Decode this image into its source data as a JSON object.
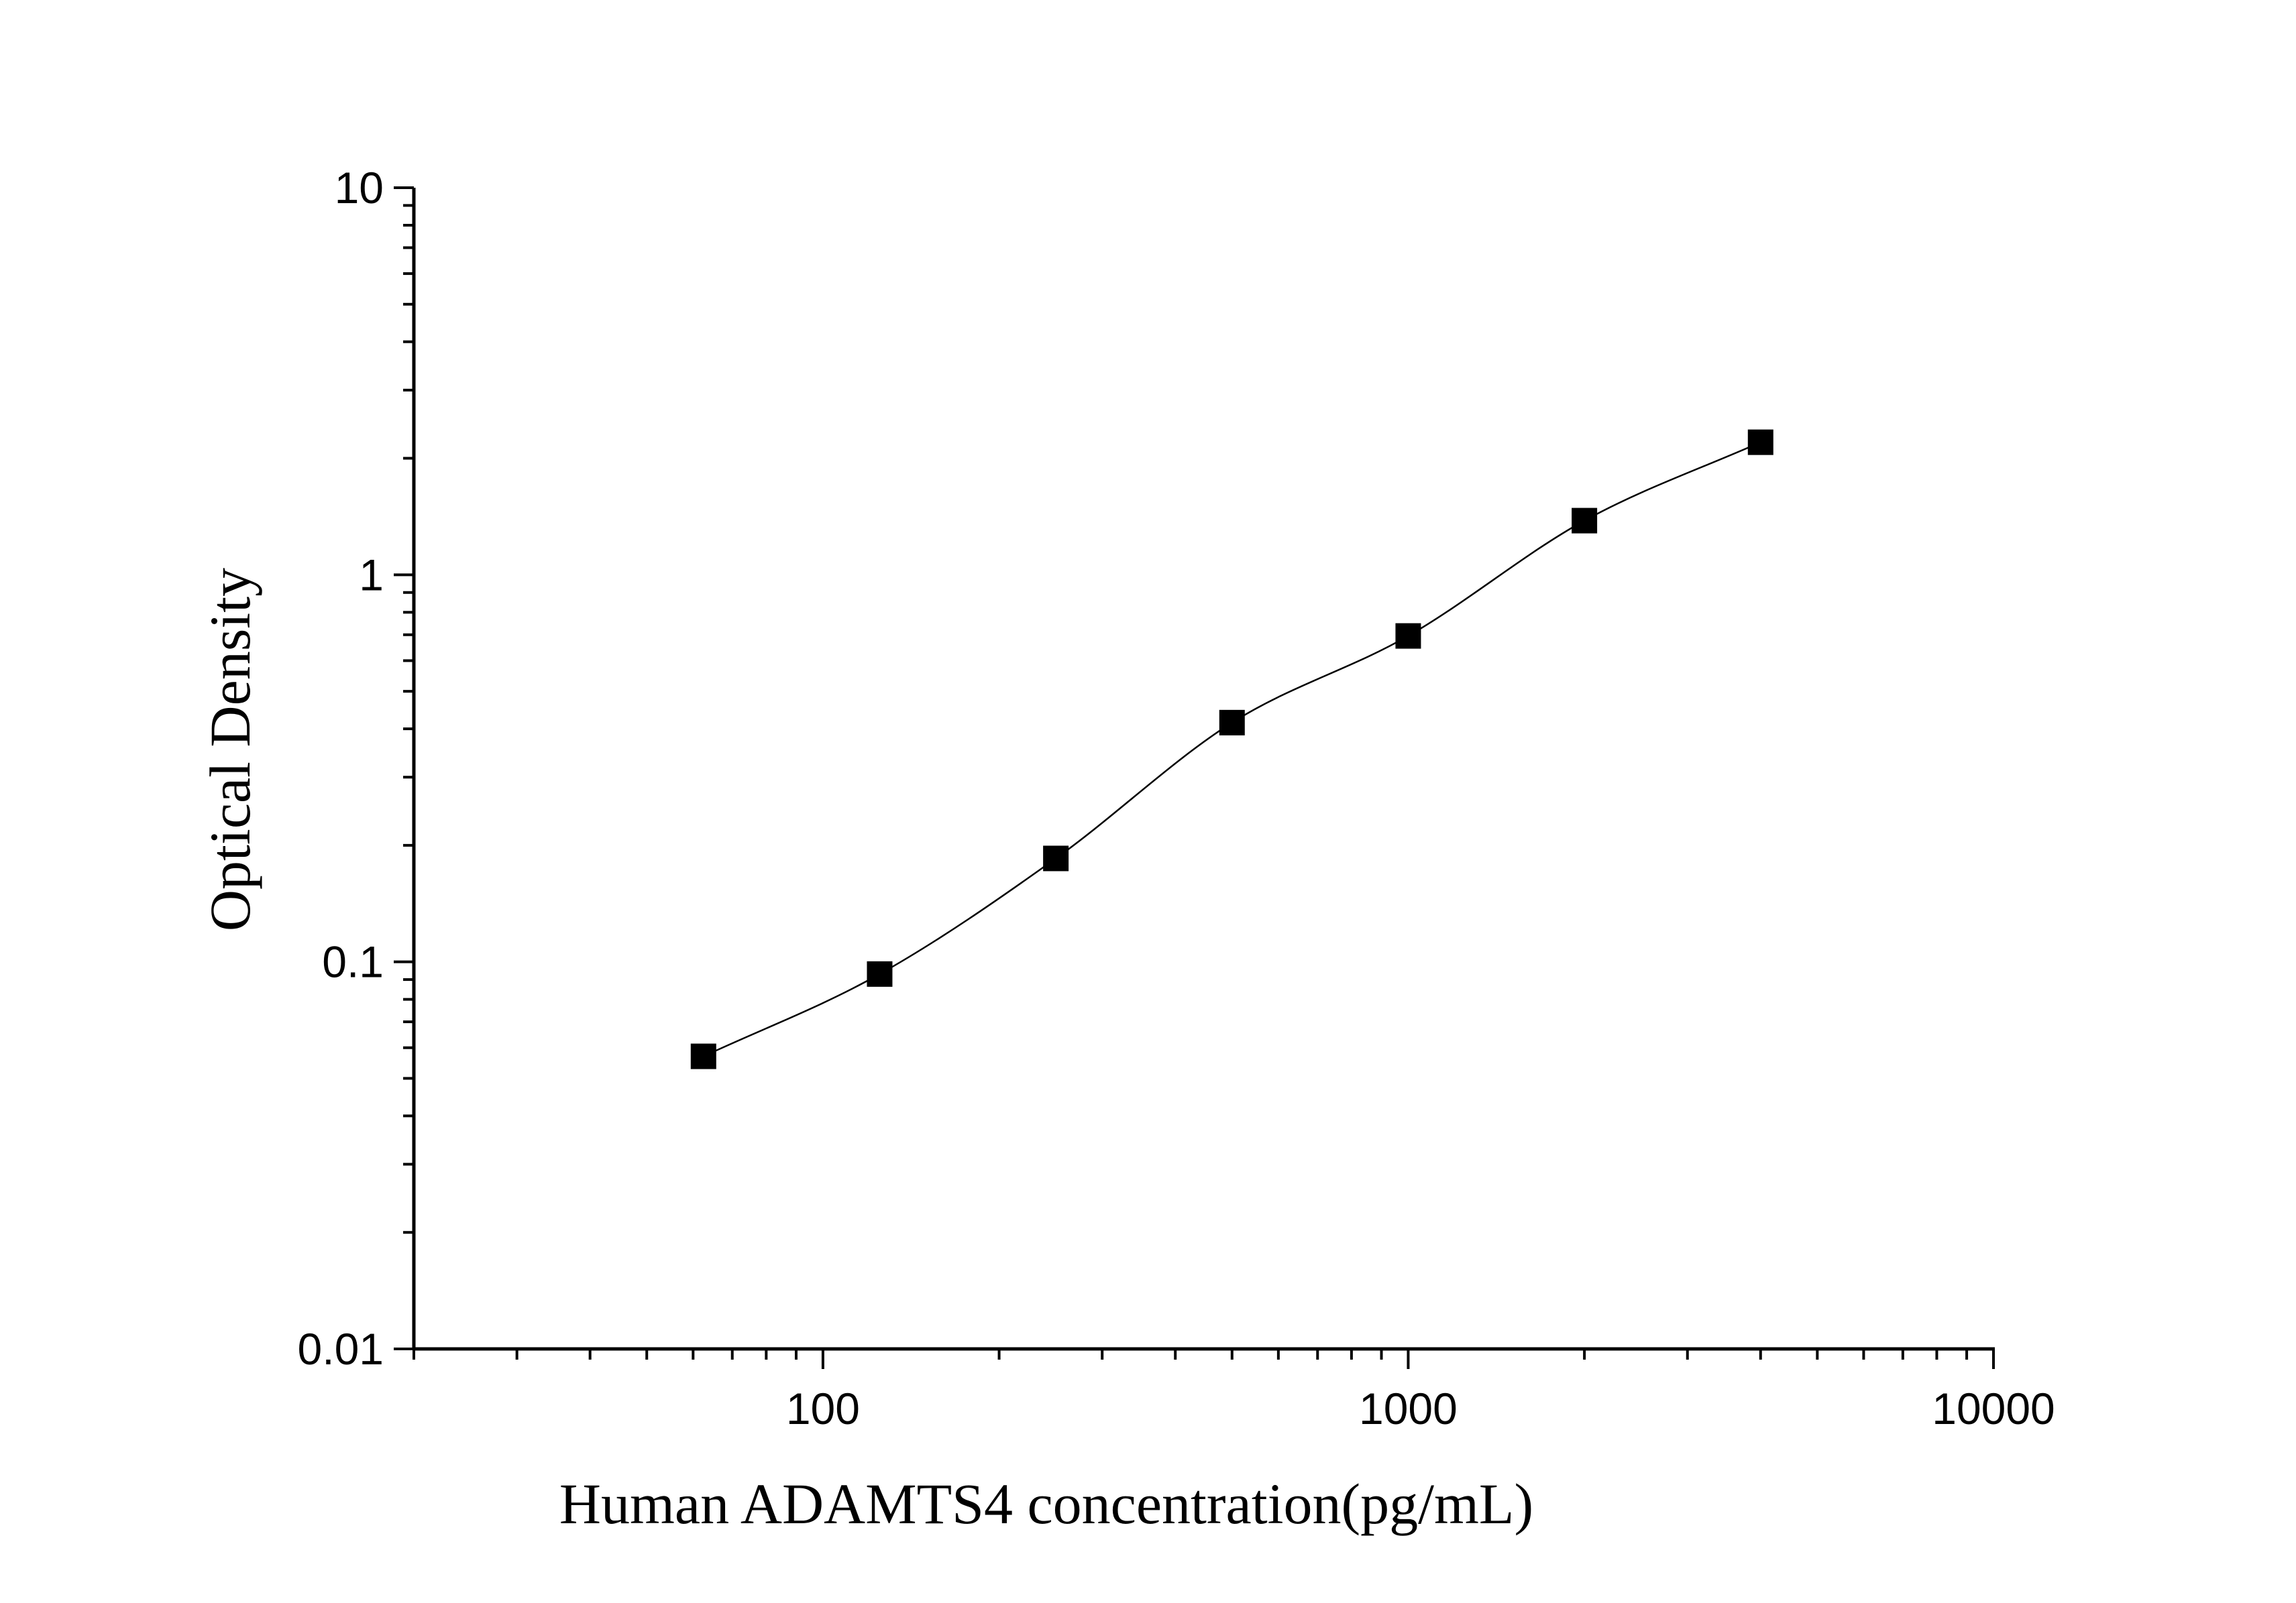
{
  "chart_data": {
    "type": "scatter",
    "xlabel": "Human ADAMTS4 concentration(pg/mL)",
    "ylabel": "Optical Density",
    "x_scale": "log",
    "y_scale": "log",
    "xlim": [
      20,
      10000
    ],
    "ylim": [
      0.01,
      10
    ],
    "x_ticks": [
      "100",
      "1000",
      "10000"
    ],
    "y_ticks": [
      "0.01",
      "0.1",
      "1",
      "10"
    ],
    "grid": false,
    "legend": "none",
    "marker": "square",
    "fit_line": true,
    "series": [
      {
        "x": [
          62.5,
          125,
          250,
          500,
          1000,
          2000,
          4000
        ],
        "y": [
          0.057,
          0.093,
          0.185,
          0.415,
          0.695,
          1.38,
          2.2
        ]
      }
    ],
    "colors": {
      "marker": "#000000",
      "line": "#000000",
      "axis": "#000000"
    }
  }
}
